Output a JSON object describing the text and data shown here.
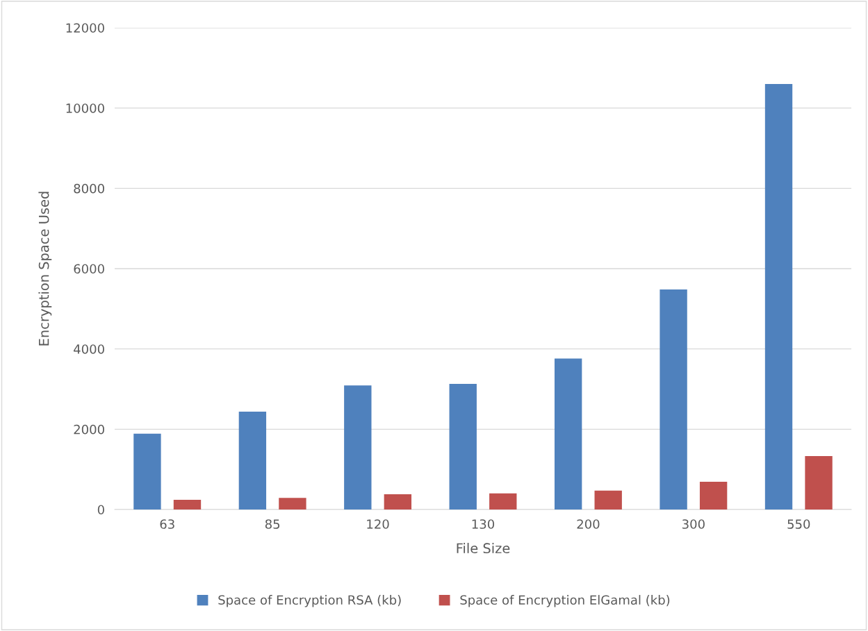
{
  "chart_data": {
    "type": "bar",
    "xlabel": "File Size",
    "ylabel": "Encryption Space Used",
    "categories": [
      "63",
      "85",
      "120",
      "130",
      "200",
      "300",
      "550"
    ],
    "series": [
      {
        "name": "Space of Encryption RSA (kb)",
        "color": "#4f81bd",
        "values": [
          1890,
          2440,
          3090,
          3130,
          3760,
          5480,
          10600
        ]
      },
      {
        "name": "Space of Encryption ElGamal (kb)",
        "color": "#c0504d",
        "values": [
          240,
          290,
          380,
          400,
          470,
          690,
          1330
        ]
      }
    ],
    "ylim": [
      0,
      12000
    ],
    "yticks": [
      0,
      2000,
      4000,
      6000,
      8000,
      10000,
      12000
    ],
    "grid": "y",
    "legend": "bottom"
  }
}
